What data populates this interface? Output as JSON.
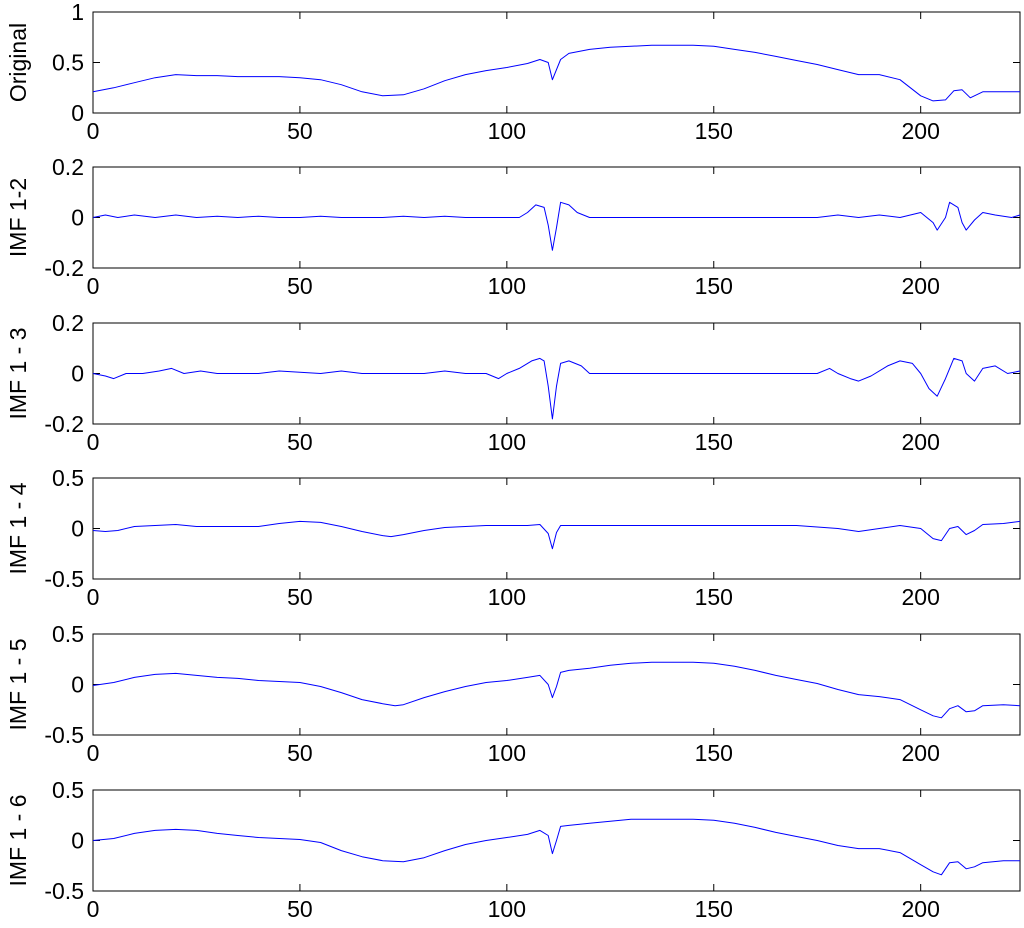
{
  "chart_data": [
    {
      "type": "line",
      "ylabel": "Original",
      "xlim": [
        0,
        224
      ],
      "ylim": [
        0,
        1
      ],
      "xticks": [
        0,
        50,
        100,
        150,
        200
      ],
      "yticks": [
        "1",
        "0.5",
        "0"
      ],
      "ytick_values": [
        1,
        0.5,
        0
      ],
      "color": "#0000ff",
      "series": [
        {
          "x": [
            0,
            5,
            10,
            15,
            20,
            25,
            30,
            35,
            40,
            45,
            50,
            55,
            60,
            65,
            70,
            75,
            80,
            85,
            90,
            95,
            100,
            105,
            108,
            110,
            111,
            113,
            115,
            120,
            125,
            130,
            135,
            140,
            145,
            150,
            155,
            160,
            165,
            170,
            175,
            180,
            185,
            190,
            195,
            200,
            203,
            206,
            208,
            210,
            212,
            215,
            220,
            224
          ],
          "y": [
            0.21,
            0.25,
            0.3,
            0.35,
            0.38,
            0.37,
            0.37,
            0.36,
            0.36,
            0.36,
            0.35,
            0.33,
            0.28,
            0.21,
            0.17,
            0.18,
            0.24,
            0.32,
            0.38,
            0.42,
            0.45,
            0.49,
            0.53,
            0.5,
            0.33,
            0.53,
            0.59,
            0.63,
            0.65,
            0.66,
            0.67,
            0.67,
            0.67,
            0.66,
            0.63,
            0.6,
            0.56,
            0.52,
            0.48,
            0.43,
            0.38,
            0.38,
            0.33,
            0.17,
            0.12,
            0.13,
            0.22,
            0.23,
            0.15,
            0.21,
            0.21,
            0.21
          ]
        }
      ]
    },
    {
      "type": "line",
      "ylabel": "IMF 1-2",
      "xlim": [
        0,
        224
      ],
      "ylim": [
        -0.2,
        0.2
      ],
      "xticks": [
        0,
        50,
        100,
        150,
        200
      ],
      "yticks": [
        "0.2",
        "0",
        "-0.2"
      ],
      "ytick_values": [
        0.2,
        0,
        -0.2
      ],
      "color": "#0000ff",
      "series": [
        {
          "x": [
            0,
            3,
            6,
            10,
            15,
            20,
            25,
            30,
            35,
            40,
            45,
            50,
            55,
            60,
            65,
            70,
            75,
            80,
            85,
            90,
            95,
            100,
            103,
            105,
            107,
            109,
            110,
            111,
            112,
            113,
            115,
            117,
            120,
            125,
            130,
            140,
            150,
            160,
            170,
            175,
            180,
            185,
            190,
            195,
            200,
            203,
            204,
            206,
            207,
            209,
            210,
            211,
            213,
            215,
            218,
            222,
            224
          ],
          "y": [
            0.0,
            0.01,
            0.0,
            0.01,
            0.0,
            0.01,
            0.0,
            0.005,
            0.0,
            0.005,
            0.0,
            0.0,
            0.005,
            0.0,
            0.0,
            0.0,
            0.005,
            0.0,
            0.005,
            0.0,
            0.0,
            0.0,
            0.0,
            0.02,
            0.05,
            0.04,
            -0.03,
            -0.13,
            -0.04,
            0.06,
            0.05,
            0.02,
            0.0,
            0.0,
            0.0,
            0.0,
            0.0,
            0.0,
            0.0,
            0.0,
            0.01,
            0.0,
            0.01,
            0.0,
            0.02,
            -0.02,
            -0.05,
            0.0,
            0.06,
            0.04,
            -0.02,
            -0.05,
            -0.01,
            0.02,
            0.01,
            0.0,
            0.01
          ]
        }
      ]
    },
    {
      "type": "line",
      "ylabel": "IMF 1 - 3",
      "xlim": [
        0,
        224
      ],
      "ylim": [
        -0.2,
        0.2
      ],
      "xticks": [
        0,
        50,
        100,
        150,
        200
      ],
      "yticks": [
        "0.2",
        "0",
        "-0.2"
      ],
      "ytick_values": [
        0.2,
        0,
        -0.2
      ],
      "color": "#0000ff",
      "series": [
        {
          "x": [
            0,
            3,
            5,
            8,
            12,
            16,
            19,
            22,
            26,
            30,
            35,
            40,
            45,
            50,
            55,
            60,
            65,
            70,
            75,
            80,
            85,
            90,
            95,
            98,
            100,
            103,
            106,
            108,
            109,
            110,
            111,
            112,
            113,
            115,
            118,
            120,
            125,
            130,
            140,
            150,
            160,
            170,
            175,
            178,
            180,
            183,
            185,
            188,
            192,
            195,
            198,
            200,
            202,
            204,
            206,
            208,
            210,
            211,
            213,
            215,
            218,
            221,
            224
          ],
          "y": [
            0.0,
            -0.01,
            -0.02,
            0.0,
            0.0,
            0.01,
            0.02,
            0.0,
            0.01,
            0.0,
            0.0,
            0.0,
            0.01,
            0.005,
            0.0,
            0.01,
            0.0,
            0.0,
            0.0,
            0.0,
            0.01,
            0.0,
            0.0,
            -0.02,
            0.0,
            0.02,
            0.05,
            0.06,
            0.05,
            -0.05,
            -0.18,
            -0.05,
            0.04,
            0.05,
            0.03,
            0.0,
            0.0,
            0.0,
            0.0,
            0.0,
            0.0,
            0.0,
            0.0,
            0.02,
            0.0,
            -0.02,
            -0.03,
            -0.01,
            0.03,
            0.05,
            0.04,
            0.0,
            -0.06,
            -0.09,
            -0.02,
            0.06,
            0.05,
            0.0,
            -0.03,
            0.02,
            0.03,
            0.0,
            0.01
          ]
        }
      ]
    },
    {
      "type": "line",
      "ylabel": "IMF 1 - 4",
      "xlim": [
        0,
        224
      ],
      "ylim": [
        -0.5,
        0.5
      ],
      "xticks": [
        0,
        50,
        100,
        150,
        200
      ],
      "yticks": [
        "0.5",
        "0",
        "-0.5"
      ],
      "ytick_values": [
        0.5,
        0,
        -0.5
      ],
      "color": "#0000ff",
      "series": [
        {
          "x": [
            0,
            3,
            6,
            10,
            15,
            20,
            25,
            30,
            35,
            40,
            45,
            50,
            55,
            60,
            65,
            70,
            72,
            75,
            80,
            85,
            90,
            95,
            100,
            105,
            108,
            110,
            111,
            112,
            113,
            115,
            120,
            130,
            140,
            150,
            160,
            170,
            180,
            185,
            190,
            195,
            200,
            203,
            205,
            207,
            209,
            211,
            213,
            215,
            220,
            224
          ],
          "y": [
            -0.02,
            -0.03,
            -0.02,
            0.02,
            0.03,
            0.04,
            0.02,
            0.02,
            0.02,
            0.02,
            0.05,
            0.07,
            0.06,
            0.02,
            -0.03,
            -0.07,
            -0.08,
            -0.06,
            -0.02,
            0.01,
            0.02,
            0.03,
            0.03,
            0.03,
            0.04,
            -0.05,
            -0.2,
            -0.04,
            0.03,
            0.03,
            0.03,
            0.03,
            0.03,
            0.03,
            0.03,
            0.03,
            0.0,
            -0.03,
            0.0,
            0.03,
            0.0,
            -0.1,
            -0.12,
            0.0,
            0.02,
            -0.06,
            -0.02,
            0.04,
            0.05,
            0.07
          ]
        }
      ]
    },
    {
      "type": "line",
      "ylabel": "IMF 1 - 5",
      "xlim": [
        0,
        224
      ],
      "ylim": [
        -0.5,
        0.5
      ],
      "xticks": [
        0,
        50,
        100,
        150,
        200
      ],
      "yticks": [
        "0.5",
        "0",
        "-0.5"
      ],
      "ytick_values": [
        0.5,
        0,
        -0.5
      ],
      "color": "#0000ff",
      "series": [
        {
          "x": [
            0,
            5,
            10,
            15,
            20,
            25,
            30,
            35,
            40,
            45,
            50,
            55,
            60,
            65,
            70,
            73,
            75,
            80,
            85,
            90,
            95,
            100,
            105,
            108,
            110,
            111,
            112,
            113,
            115,
            120,
            125,
            130,
            135,
            140,
            145,
            150,
            155,
            160,
            165,
            170,
            175,
            180,
            185,
            190,
            195,
            200,
            203,
            205,
            207,
            209,
            211,
            213,
            215,
            220,
            224
          ],
          "y": [
            -0.01,
            0.02,
            0.07,
            0.1,
            0.11,
            0.09,
            0.07,
            0.06,
            0.04,
            0.03,
            0.02,
            -0.02,
            -0.08,
            -0.15,
            -0.19,
            -0.21,
            -0.2,
            -0.13,
            -0.07,
            -0.02,
            0.02,
            0.04,
            0.07,
            0.09,
            0.0,
            -0.13,
            -0.02,
            0.12,
            0.14,
            0.16,
            0.19,
            0.21,
            0.22,
            0.22,
            0.22,
            0.21,
            0.18,
            0.14,
            0.09,
            0.05,
            0.01,
            -0.05,
            -0.1,
            -0.12,
            -0.15,
            -0.25,
            -0.31,
            -0.33,
            -0.24,
            -0.21,
            -0.27,
            -0.26,
            -0.21,
            -0.2,
            -0.21
          ]
        }
      ]
    },
    {
      "type": "line",
      "ylabel": "IMF 1 - 6",
      "xlim": [
        0,
        224
      ],
      "ylim": [
        -0.5,
        0.5
      ],
      "xticks": [
        0,
        50,
        100,
        150,
        200
      ],
      "yticks": [
        "0.5",
        "0",
        "-0.5"
      ],
      "ytick_values": [
        0.5,
        0,
        -0.5
      ],
      "color": "#0000ff",
      "series": [
        {
          "x": [
            0,
            5,
            10,
            15,
            20,
            25,
            30,
            35,
            40,
            45,
            50,
            55,
            60,
            65,
            70,
            75,
            80,
            85,
            90,
            95,
            100,
            105,
            108,
            110,
            111,
            112,
            113,
            115,
            120,
            125,
            130,
            135,
            140,
            145,
            150,
            155,
            160,
            165,
            170,
            175,
            180,
            185,
            190,
            195,
            200,
            203,
            205,
            207,
            209,
            211,
            213,
            215,
            220,
            224
          ],
          "y": [
            0.0,
            0.02,
            0.07,
            0.1,
            0.11,
            0.1,
            0.07,
            0.05,
            0.03,
            0.02,
            0.01,
            -0.02,
            -0.1,
            -0.16,
            -0.2,
            -0.21,
            -0.17,
            -0.1,
            -0.04,
            0.0,
            0.03,
            0.06,
            0.1,
            0.05,
            -0.13,
            0.0,
            0.14,
            0.15,
            0.17,
            0.19,
            0.21,
            0.21,
            0.21,
            0.21,
            0.2,
            0.17,
            0.13,
            0.08,
            0.04,
            0.0,
            -0.05,
            -0.08,
            -0.08,
            -0.12,
            -0.24,
            -0.31,
            -0.34,
            -0.22,
            -0.21,
            -0.28,
            -0.26,
            -0.22,
            -0.2,
            -0.2
          ]
        }
      ]
    }
  ]
}
